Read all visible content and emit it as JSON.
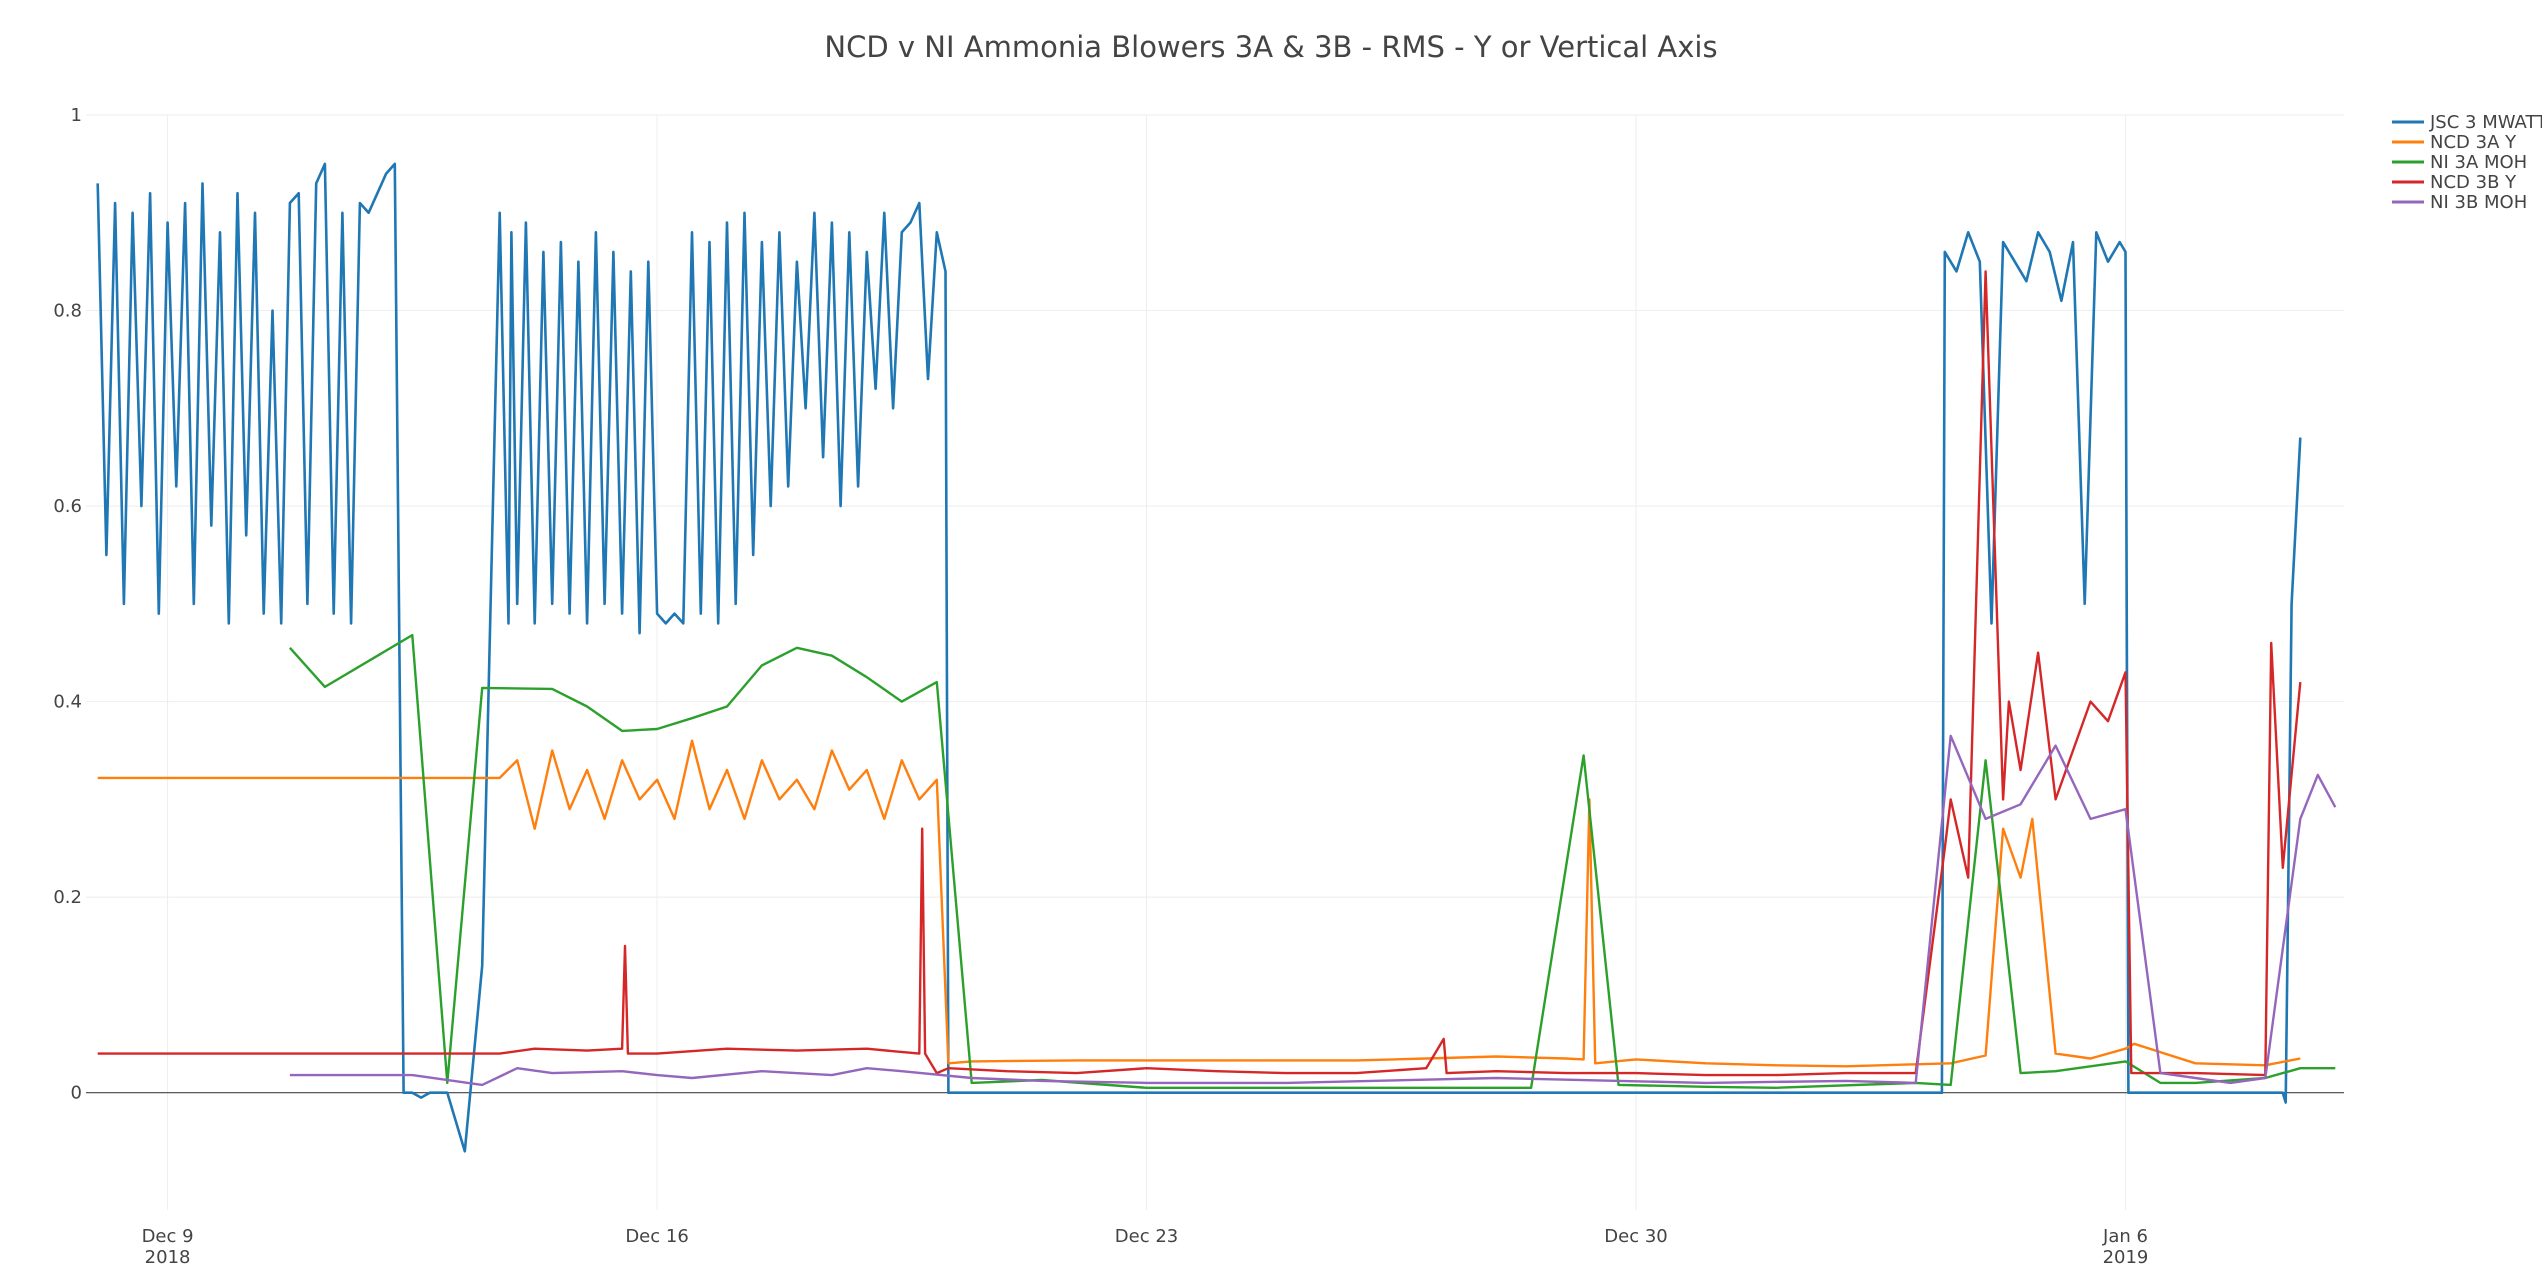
{
  "chart_data": {
    "type": "line",
    "title": "NCD v NI Ammonia Blowers 3A & 3B - RMS - Y or Vertical Axis",
    "xlabel": "",
    "ylabel": "",
    "xlim": [
      "2018-12-07 20:00",
      "2019-01-09 03:00"
    ],
    "ylim": [
      -0.12,
      1.0
    ],
    "yticks": [
      0,
      0.2,
      0.4,
      0.6,
      0.8,
      1
    ],
    "ytick_labels": [
      "0",
      "0.2",
      "0.4",
      "0.6",
      "0.8",
      "1"
    ],
    "xticks": [
      {
        "date": "2018-12-09",
        "label": "Dec 9",
        "sublabel": "2018"
      },
      {
        "date": "2018-12-16",
        "label": "Dec 16",
        "sublabel": ""
      },
      {
        "date": "2018-12-23",
        "label": "Dec 23",
        "sublabel": ""
      },
      {
        "date": "2018-12-30",
        "label": "Dec 30",
        "sublabel": ""
      },
      {
        "date": "2019-01-06",
        "label": "Jan 6",
        "sublabel": "2019"
      }
    ],
    "grid": true,
    "legend_position": "top-right",
    "series": [
      {
        "name": "JSC 3 MWATTS",
        "color": "#1f77b4",
        "x": [
          "2018-12-08 00:00",
          "2018-12-08 03:00",
          "2018-12-08 06:00",
          "2018-12-08 09:00",
          "2018-12-08 12:00",
          "2018-12-08 15:00",
          "2018-12-08 18:00",
          "2018-12-08 21:00",
          "2018-12-09 00:00",
          "2018-12-09 03:00",
          "2018-12-09 06:00",
          "2018-12-09 09:00",
          "2018-12-09 12:00",
          "2018-12-09 15:00",
          "2018-12-09 18:00",
          "2018-12-09 21:00",
          "2018-12-10 00:00",
          "2018-12-10 03:00",
          "2018-12-10 06:00",
          "2018-12-10 09:00",
          "2018-12-10 12:00",
          "2018-12-10 15:00",
          "2018-12-10 18:00",
          "2018-12-10 21:00",
          "2018-12-11 00:00",
          "2018-12-11 03:00",
          "2018-12-11 06:00",
          "2018-12-11 09:00",
          "2018-12-11 12:00",
          "2018-12-11 15:00",
          "2018-12-11 18:00",
          "2018-12-11 21:00",
          "2018-12-12 00:00",
          "2018-12-12 03:00",
          "2018-12-12 06:00",
          "2018-12-12 09:00",
          "2018-12-12 12:00",
          "2018-12-12 15:00",
          "2018-12-12 18:00",
          "2018-12-12 19:00",
          "2018-12-13 00:00",
          "2018-12-13 06:00",
          "2018-12-13 12:00",
          "2018-12-13 18:00",
          "2018-12-13 21:00",
          "2018-12-13 22:00",
          "2018-12-14 00:00",
          "2018-12-14 03:00",
          "2018-12-14 06:00",
          "2018-12-14 09:00",
          "2018-12-14 12:00",
          "2018-12-14 15:00",
          "2018-12-14 18:00",
          "2018-12-14 21:00",
          "2018-12-15 00:00",
          "2018-12-15 03:00",
          "2018-12-15 06:00",
          "2018-12-15 09:00",
          "2018-12-15 12:00",
          "2018-12-15 15:00",
          "2018-12-15 18:00",
          "2018-12-15 21:00",
          "2018-12-16 00:00",
          "2018-12-16 03:00",
          "2018-12-16 06:00",
          "2018-12-16 09:00",
          "2018-12-16 12:00",
          "2018-12-16 15:00",
          "2018-12-16 18:00",
          "2018-12-16 21:00",
          "2018-12-17 00:00",
          "2018-12-17 03:00",
          "2018-12-17 06:00",
          "2018-12-17 09:00",
          "2018-12-17 12:00",
          "2018-12-17 15:00",
          "2018-12-17 18:00",
          "2018-12-17 21:00",
          "2018-12-18 00:00",
          "2018-12-18 03:00",
          "2018-12-18 06:00",
          "2018-12-18 09:00",
          "2018-12-18 12:00",
          "2018-12-18 15:00",
          "2018-12-18 18:00",
          "2018-12-18 21:00",
          "2018-12-19 00:00",
          "2018-12-19 03:00",
          "2018-12-19 06:00",
          "2018-12-19 09:00",
          "2018-12-19 12:00",
          "2018-12-19 15:00",
          "2018-12-19 18:00",
          "2018-12-19 21:00",
          "2018-12-20 00:00",
          "2018-12-20 03:00",
          "2018-12-20 04:00",
          "2018-12-21 00:00",
          "2018-12-23 00:00",
          "2018-12-26 00:00",
          "2018-12-29 00:00",
          "2019-01-01 00:00",
          "2019-01-03 00:00",
          "2019-01-03 09:00",
          "2019-01-03 10:00",
          "2019-01-03 14:00",
          "2019-01-03 18:00",
          "2019-01-03 22:00",
          "2019-01-04 02:00",
          "2019-01-04 06:00",
          "2019-01-04 10:00",
          "2019-01-04 14:00",
          "2019-01-04 18:00",
          "2019-01-04 22:00",
          "2019-01-05 02:00",
          "2019-01-05 06:00",
          "2019-01-05 10:00",
          "2019-01-05 14:00",
          "2019-01-05 18:00",
          "2019-01-05 22:00",
          "2019-01-06 00:00",
          "2019-01-06 01:00",
          "2019-01-07 00:00",
          "2019-01-08 00:00",
          "2019-01-08 06:00",
          "2019-01-08 07:00",
          "2019-01-08 09:00",
          "2019-01-08 12:00"
        ],
        "y": [
          0.93,
          0.55,
          0.91,
          0.5,
          0.9,
          0.6,
          0.92,
          0.49,
          0.89,
          0.62,
          0.91,
          0.5,
          0.93,
          0.58,
          0.88,
          0.48,
          0.92,
          0.57,
          0.9,
          0.49,
          0.8,
          0.48,
          0.91,
          0.92,
          0.5,
          0.93,
          0.95,
          0.49,
          0.9,
          0.48,
          0.91,
          0.9,
          0.92,
          0.94,
          0.95,
          0.0,
          0.0,
          -0.005,
          0.0,
          0.0,
          0.0,
          -0.06,
          0.13,
          0.9,
          0.48,
          0.88,
          0.5,
          0.89,
          0.48,
          0.86,
          0.5,
          0.87,
          0.49,
          0.85,
          0.48,
          0.88,
          0.5,
          0.86,
          0.49,
          0.84,
          0.47,
          0.85,
          0.49,
          0.48,
          0.49,
          0.48,
          0.88,
          0.49,
          0.87,
          0.48,
          0.89,
          0.5,
          0.9,
          0.55,
          0.87,
          0.6,
          0.88,
          0.62,
          0.85,
          0.7,
          0.9,
          0.65,
          0.89,
          0.6,
          0.88,
          0.62,
          0.86,
          0.72,
          0.9,
          0.7,
          0.88,
          0.89,
          0.91,
          0.73,
          0.88,
          0.84,
          0.0,
          0.0,
          0.0,
          0.0,
          0.0,
          0.0,
          0.0,
          0.0,
          0.86,
          0.84,
          0.88,
          0.85,
          0.48,
          0.87,
          0.85,
          0.83,
          0.88,
          0.86,
          0.81,
          0.87,
          0.5,
          0.88,
          0.85,
          0.87,
          0.86,
          0.0,
          0.0,
          0.0,
          0.0,
          -0.01,
          0.5,
          0.67
        ]
      },
      {
        "name": "NCD 3A Y",
        "color": "#ff7f0e",
        "x": [
          "2018-12-08 00:00",
          "2018-12-13 18:00",
          "2018-12-14 00:00",
          "2018-12-14 06:00",
          "2018-12-14 12:00",
          "2018-12-14 18:00",
          "2018-12-15 00:00",
          "2018-12-15 06:00",
          "2018-12-15 12:00",
          "2018-12-15 18:00",
          "2018-12-16 00:00",
          "2018-12-16 06:00",
          "2018-12-16 12:00",
          "2018-12-16 18:00",
          "2018-12-17 00:00",
          "2018-12-17 06:00",
          "2018-12-17 12:00",
          "2018-12-17 18:00",
          "2018-12-18 00:00",
          "2018-12-18 06:00",
          "2018-12-18 12:00",
          "2018-12-18 18:00",
          "2018-12-19 00:00",
          "2018-12-19 06:00",
          "2018-12-19 12:00",
          "2018-12-19 18:00",
          "2018-12-20 00:00",
          "2018-12-20 04:00",
          "2018-12-20 12:00",
          "2018-12-22 00:00",
          "2018-12-24 00:00",
          "2018-12-26 00:00",
          "2018-12-27 00:00",
          "2018-12-28 00:00",
          "2018-12-29 00:00",
          "2018-12-29 06:00",
          "2018-12-29 08:00",
          "2018-12-29 10:00",
          "2018-12-30 00:00",
          "2018-12-31 00:00",
          "2019-01-01 00:00",
          "2019-01-02 00:00",
          "2019-01-03 00:00",
          "2019-01-03 12:00",
          "2019-01-04 00:00",
          "2019-01-04 06:00",
          "2019-01-04 12:00",
          "2019-01-04 16:00",
          "2019-01-05 00:00",
          "2019-01-05 12:00",
          "2019-01-06 00:00",
          "2019-01-06 03:00",
          "2019-01-07 00:00",
          "2019-01-08 00:00",
          "2019-01-08 12:00"
        ],
        "y": [
          0.322,
          0.322,
          0.34,
          0.27,
          0.35,
          0.29,
          0.33,
          0.28,
          0.34,
          0.3,
          0.32,
          0.28,
          0.36,
          0.29,
          0.33,
          0.28,
          0.34,
          0.3,
          0.32,
          0.29,
          0.35,
          0.31,
          0.33,
          0.28,
          0.34,
          0.3,
          0.32,
          0.03,
          0.032,
          0.033,
          0.033,
          0.033,
          0.035,
          0.037,
          0.035,
          0.034,
          0.3,
          0.03,
          0.034,
          0.03,
          0.028,
          0.027,
          0.029,
          0.03,
          0.038,
          0.27,
          0.22,
          0.28,
          0.04,
          0.035,
          0.045,
          0.05,
          0.03,
          0.028,
          0.035
        ]
      },
      {
        "name": "NI 3A MOH",
        "color": "#2ca02c",
        "x": [
          "2018-12-10 18:00",
          "2018-12-11 06:00",
          "2018-12-12 12:00",
          "2018-12-13 00:00",
          "2018-12-13 12:00",
          "2018-12-14 12:00",
          "2018-12-15 00:00",
          "2018-12-15 12:00",
          "2018-12-16 00:00",
          "2018-12-16 12:00",
          "2018-12-17 00:00",
          "2018-12-17 12:00",
          "2018-12-18 00:00",
          "2018-12-18 12:00",
          "2018-12-19 00:00",
          "2018-12-19 12:00",
          "2018-12-20 00:00",
          "2018-12-20 12:00",
          "2018-12-21 12:00",
          "2018-12-23 00:00",
          "2018-12-25 00:00",
          "2018-12-28 00:00",
          "2018-12-28 12:00",
          "2018-12-29 06:00",
          "2018-12-29 18:00",
          "2018-12-31 00:00",
          "2019-01-01 00:00",
          "2019-01-03 00:00",
          "2019-01-03 12:00",
          "2019-01-04 00:00",
          "2019-01-04 12:00",
          "2019-01-05 00:00",
          "2019-01-06 00:00",
          "2019-01-06 12:00",
          "2019-01-07 00:00",
          "2019-01-08 00:00",
          "2019-01-08 12:00",
          "2019-01-09 00:00"
        ],
        "y": [
          0.455,
          0.415,
          0.468,
          0.01,
          0.414,
          0.413,
          0.395,
          0.37,
          0.372,
          0.383,
          0.395,
          0.437,
          0.455,
          0.447,
          0.425,
          0.4,
          0.42,
          0.01,
          0.013,
          0.005,
          0.005,
          0.005,
          0.005,
          0.345,
          0.008,
          0.006,
          0.005,
          0.01,
          0.008,
          0.34,
          0.02,
          0.022,
          0.032,
          0.01,
          0.01,
          0.015,
          0.025,
          0.025
        ]
      },
      {
        "name": "NCD 3B Y",
        "color": "#d62728",
        "x": [
          "2018-12-08 00:00",
          "2018-12-13 18:00",
          "2018-12-14 06:00",
          "2018-12-15 00:00",
          "2018-12-15 12:00",
          "2018-12-15 13:00",
          "2018-12-15 14:00",
          "2018-12-16 00:00",
          "2018-12-17 00:00",
          "2018-12-18 00:00",
          "2018-12-19 00:00",
          "2018-12-19 18:00",
          "2018-12-19 19:00",
          "2018-12-19 20:00",
          "2018-12-20 00:00",
          "2018-12-20 04:00",
          "2018-12-21 00:00",
          "2018-12-22 00:00",
          "2018-12-23 00:00",
          "2018-12-24 00:00",
          "2018-12-25 00:00",
          "2018-12-26 00:00",
          "2018-12-27 00:00",
          "2018-12-27 06:00",
          "2018-12-27 07:00",
          "2018-12-28 00:00",
          "2018-12-29 00:00",
          "2018-12-30 00:00",
          "2018-12-31 00:00",
          "2019-01-01 00:00",
          "2019-01-02 00:00",
          "2019-01-03 00:00",
          "2019-01-03 10:00",
          "2019-01-03 12:00",
          "2019-01-03 18:00",
          "2019-01-04 00:00",
          "2019-01-04 06:00",
          "2019-01-04 08:00",
          "2019-01-04 12:00",
          "2019-01-04 18:00",
          "2019-01-05 00:00",
          "2019-01-05 06:00",
          "2019-01-05 12:00",
          "2019-01-05 18:00",
          "2019-01-06 00:00",
          "2019-01-06 02:00",
          "2019-01-07 00:00",
          "2019-01-08 00:00",
          "2019-01-08 02:00",
          "2019-01-08 06:00",
          "2019-01-08 12:00"
        ],
        "y": [
          0.04,
          0.04,
          0.045,
          0.043,
          0.045,
          0.15,
          0.04,
          0.04,
          0.045,
          0.043,
          0.045,
          0.04,
          0.27,
          0.04,
          0.02,
          0.025,
          0.022,
          0.02,
          0.025,
          0.022,
          0.02,
          0.02,
          0.025,
          0.055,
          0.02,
          0.022,
          0.02,
          0.02,
          0.018,
          0.018,
          0.02,
          0.02,
          0.25,
          0.3,
          0.22,
          0.84,
          0.3,
          0.4,
          0.33,
          0.45,
          0.3,
          0.35,
          0.4,
          0.38,
          0.43,
          0.02,
          0.02,
          0.018,
          0.46,
          0.23,
          0.42
        ]
      },
      {
        "name": "NI 3B MOH",
        "color": "#9467bd",
        "x": [
          "2018-12-10 18:00",
          "2018-12-11 12:00",
          "2018-12-12 12:00",
          "2018-12-13 12:00",
          "2018-12-14 00:00",
          "2018-12-14 12:00",
          "2018-12-15 12:00",
          "2018-12-16 00:00",
          "2018-12-16 12:00",
          "2018-12-17 12:00",
          "2018-12-18 12:00",
          "2018-12-19 00:00",
          "2018-12-19 12:00",
          "2018-12-20 12:00",
          "2018-12-21 12:00",
          "2018-12-23 00:00",
          "2018-12-25 00:00",
          "2018-12-28 00:00",
          "2018-12-31 00:00",
          "2019-01-02 00:00",
          "2019-01-03 00:00",
          "2019-01-03 12:00",
          "2019-01-04 00:00",
          "2019-01-04 12:00",
          "2019-01-05 00:00",
          "2019-01-05 12:00",
          "2019-01-06 00:00",
          "2019-01-06 12:00",
          "2019-01-07 00:00",
          "2019-01-07 12:00",
          "2019-01-08 00:00",
          "2019-01-08 12:00",
          "2019-01-08 18:00",
          "2019-01-09 00:00"
        ],
        "y": [
          0.018,
          0.018,
          0.018,
          0.008,
          0.025,
          0.02,
          0.022,
          0.018,
          0.015,
          0.022,
          0.018,
          0.025,
          0.022,
          0.015,
          0.012,
          0.01,
          0.01,
          0.015,
          0.01,
          0.012,
          0.01,
          0.365,
          0.28,
          0.295,
          0.355,
          0.28,
          0.29,
          0.02,
          0.015,
          0.01,
          0.015,
          0.28,
          0.325,
          0.292
        ]
      }
    ]
  }
}
